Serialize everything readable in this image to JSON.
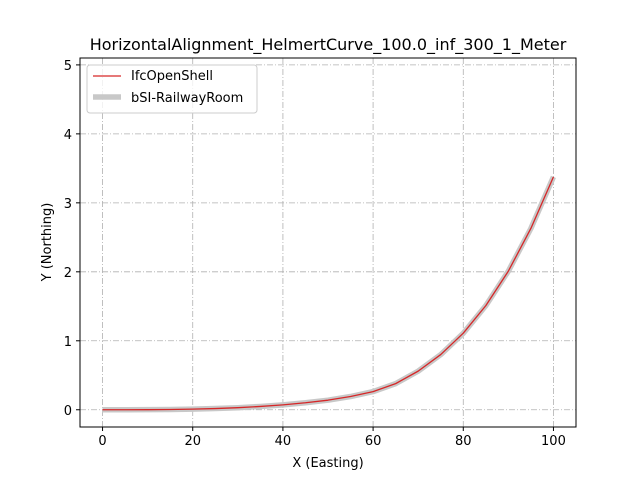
{
  "chart_data": {
    "type": "line",
    "title": "HorizontalAlignment_HelmertCurve_100.0_inf_300_1_Meter",
    "xlabel": "X (Easting)",
    "ylabel": "Y (Northing)",
    "xlim": [
      -5,
      105
    ],
    "ylim": [
      -0.25,
      5.1
    ],
    "xticks": [
      0,
      20,
      40,
      60,
      80,
      100
    ],
    "yticks": [
      0,
      1,
      2,
      3,
      4,
      5
    ],
    "grid": true,
    "legend_position": "top-left",
    "series": [
      {
        "name": "IfcOpenShell",
        "color": "#d62728",
        "x": [
          0,
          5,
          10,
          15,
          20,
          25,
          30,
          35,
          40,
          45,
          50,
          55,
          60,
          65,
          70,
          75,
          80,
          85,
          90,
          95,
          100
        ],
        "y": [
          0,
          0.0001,
          0.0011,
          0.0038,
          0.009,
          0.0174,
          0.03,
          0.048,
          0.071,
          0.101,
          0.139,
          0.192,
          0.263,
          0.379,
          0.56,
          0.8,
          1.11,
          1.51,
          2.01,
          2.63,
          3.377
        ]
      },
      {
        "name": "bSI-RailwayRoom",
        "color": "#c8c8c8",
        "x": [
          0,
          5,
          10,
          15,
          20,
          25,
          30,
          35,
          40,
          45,
          50,
          55,
          60,
          65,
          70,
          75,
          80,
          85,
          90,
          95,
          100
        ],
        "y": [
          0,
          0.0001,
          0.0011,
          0.0038,
          0.009,
          0.0174,
          0.03,
          0.048,
          0.071,
          0.101,
          0.139,
          0.192,
          0.263,
          0.379,
          0.56,
          0.8,
          1.11,
          1.51,
          2.01,
          2.63,
          3.377
        ]
      }
    ]
  }
}
